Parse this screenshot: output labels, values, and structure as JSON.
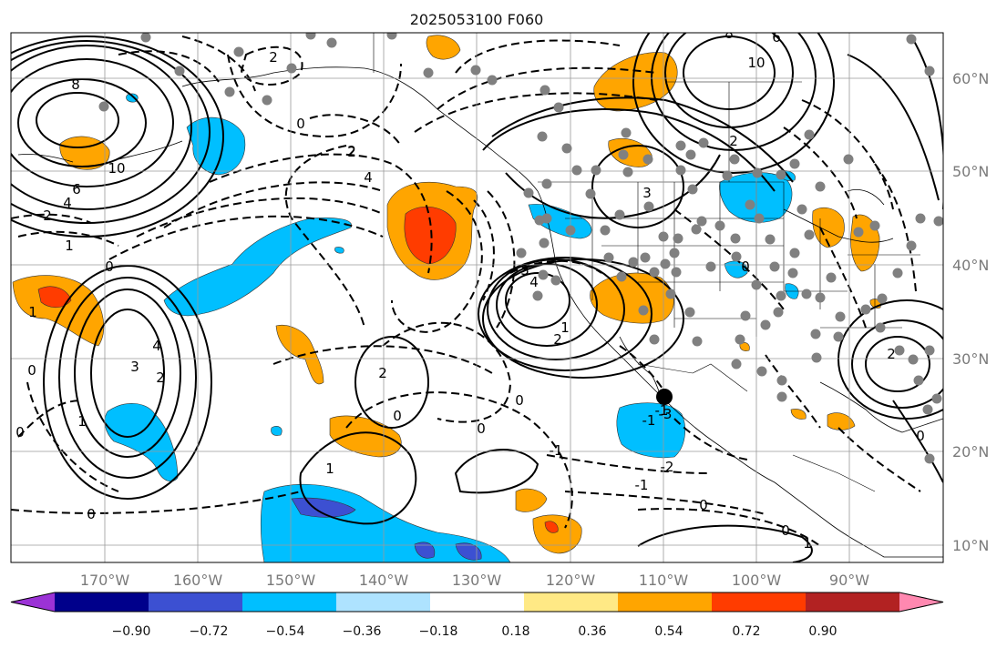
{
  "title": "2025053100 F060",
  "lat_labels": [
    "60°N",
    "50°N",
    "40°N",
    "30°N",
    "20°N",
    "10°N"
  ],
  "lon_labels": [
    "170°W",
    "160°W",
    "150°W",
    "140°W",
    "130°W",
    "120°W",
    "110°W",
    "100°W",
    "90°W"
  ],
  "colorbar": {
    "ticks": [
      "−0.90",
      "−0.72",
      "−0.54",
      "−0.36",
      "−0.18",
      "0.18",
      "0.36",
      "0.54",
      "0.72",
      "0.90"
    ],
    "colors": [
      "#9b32d6",
      "#00008b",
      "#3c50d2",
      "#00bfff",
      "#aee3ff",
      "#ffffff",
      "#ffe985",
      "#ffa500",
      "#ff3c00",
      "#b22222",
      "#ff88b0"
    ]
  },
  "contour_labels": [
    {
      "text": "8"
    },
    {
      "text": "10"
    },
    {
      "text": "6"
    },
    {
      "text": "4"
    },
    {
      "text": "2"
    },
    {
      "text": "1"
    },
    {
      "text": "0"
    },
    {
      "text": "2"
    },
    {
      "text": "2"
    },
    {
      "text": "4"
    },
    {
      "text": "0"
    },
    {
      "text": "2"
    },
    {
      "text": "8"
    },
    {
      "text": "10"
    },
    {
      "text": "6"
    },
    {
      "text": "2"
    },
    {
      "text": "3"
    },
    {
      "text": "4"
    },
    {
      "text": "3"
    },
    {
      "text": "4"
    },
    {
      "text": "2"
    },
    {
      "text": "1"
    },
    {
      "text": "3"
    },
    {
      "text": "2"
    },
    {
      "text": "1"
    },
    {
      "text": "0"
    },
    {
      "text": "1"
    },
    {
      "text": "0"
    },
    {
      "text": "0"
    },
    {
      "text": "1"
    },
    {
      "text": "2"
    },
    {
      "text": "0"
    },
    {
      "text": "0"
    },
    {
      "text": "-1"
    },
    {
      "text": "-2"
    },
    {
      "text": "-1"
    },
    {
      "text": "0"
    },
    {
      "text": "-1"
    },
    {
      "text": "0"
    },
    {
      "text": "0"
    },
    {
      "text": "1"
    },
    {
      "text": "0"
    },
    {
      "text": "2"
    },
    {
      "text": "-1"
    },
    {
      "text": "0"
    },
    {
      "text": "-3"
    }
  ]
}
